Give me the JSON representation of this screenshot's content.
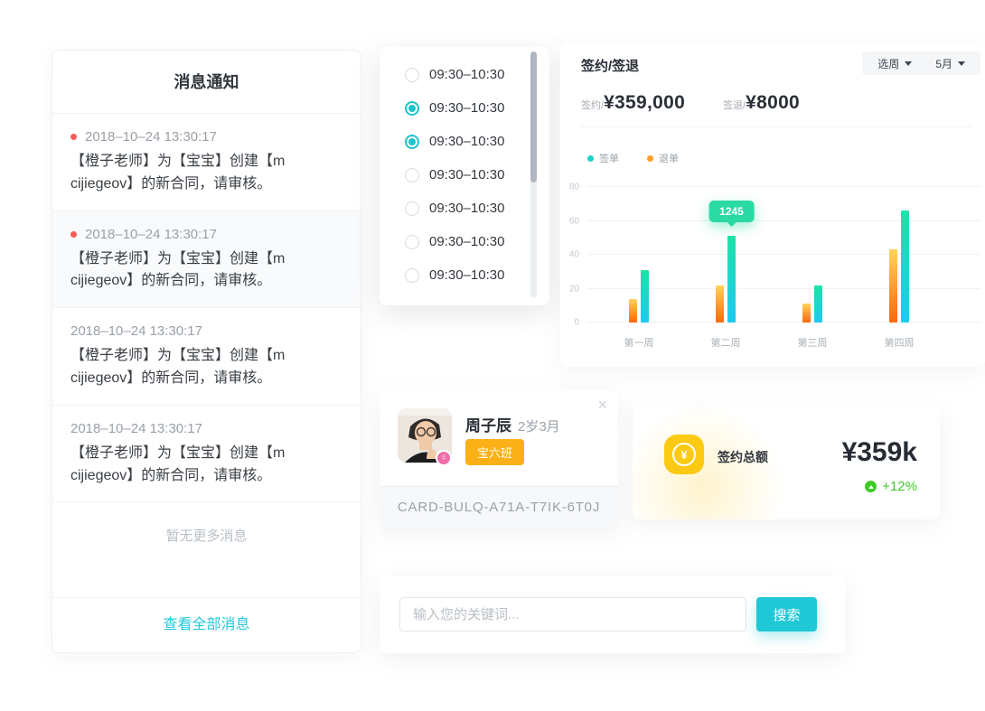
{
  "messages_card": {
    "title": "消息通知",
    "items": [
      {
        "time": "2018–10–24  13:30:17",
        "text": "【橙子老师】为【宝宝】创建【m cijiegeov】的新合同，请审核。",
        "unread": true,
        "highlighted": false
      },
      {
        "time": "2018–10–24  13:30:17",
        "text": "【橙子老师】为【宝宝】创建【m cijiegeov】的新合同，请审核。",
        "unread": true,
        "highlighted": true
      },
      {
        "time": "2018–10–24  13:30:17",
        "text": "【橙子老师】为【宝宝】创建【m cijiegeov】的新合同，请审核。",
        "unread": false,
        "highlighted": false
      },
      {
        "time": "2018–10–24  13:30:17",
        "text": "【橙子老师】为【宝宝】创建【m cijiegeov】的新合同，请审核。",
        "unread": false,
        "highlighted": false
      }
    ],
    "empty_text": "暂无更多消息",
    "footer_link": "查看全部消息"
  },
  "time_dropdown": {
    "options": [
      {
        "label": "09:30–10:30",
        "selected": false
      },
      {
        "label": "09:30–10:30",
        "selected": true
      },
      {
        "label": "09:30–10:30",
        "selected": true
      },
      {
        "label": "09:30–10:30",
        "selected": false
      },
      {
        "label": "09:30–10:30",
        "selected": false
      },
      {
        "label": "09:30–10:30",
        "selected": false
      },
      {
        "label": "09:30–10:30",
        "selected": false
      }
    ]
  },
  "chart_card": {
    "title": "签约/签退",
    "filters": [
      {
        "label": "选周"
      },
      {
        "label": "5月"
      }
    ],
    "stats": [
      {
        "label": "签约/",
        "value": "¥359,000"
      },
      {
        "label": "签退/",
        "value": "¥8000"
      }
    ]
  },
  "chart_data": {
    "type": "bar",
    "title": "签约/签退",
    "categories": [
      "第一周",
      "第二周",
      "第三周",
      "第四周"
    ],
    "series": [
      {
        "name": "签单",
        "values": [
          31,
          51,
          22,
          66
        ]
      },
      {
        "name": "退单",
        "values": [
          14,
          22,
          11,
          43
        ]
      }
    ],
    "ylim": [
      0,
      80
    ],
    "yticks": [
      0,
      20,
      40,
      60,
      80
    ],
    "grid": true,
    "legend_position": "top-left",
    "tooltip": {
      "category_index": 1,
      "series": "签单",
      "label": "1245"
    }
  },
  "profile_card": {
    "name": "周子辰",
    "age": "2岁3月",
    "class_badge": "宝六班",
    "card_number": "CARD-BULQ-A71A-T7IK-6T0J",
    "close_icon": "×",
    "gender_icon": "♀"
  },
  "summary_card": {
    "label": "签约总额",
    "amount": "¥359k",
    "trend": "+12%",
    "currency_symbol": "¥"
  },
  "search": {
    "placeholder": "输入您的关键词...",
    "button": "搜索"
  },
  "colors": {
    "accent_cyan": "#1fc8d6",
    "radio_teal": "#1fc3cc",
    "tooltip_green": "#2ad9a3",
    "badge_orange": "#fbb017",
    "trend_green": "#3ecb26",
    "unread_red": "#f45b5b",
    "icon_yellow": "#fcca13",
    "bar_teal_top": "#1ee2a6",
    "bar_teal_bottom": "#1fc9f0",
    "bar_orange_top": "#ffd35c",
    "bar_orange_bottom": "#f9690e"
  }
}
